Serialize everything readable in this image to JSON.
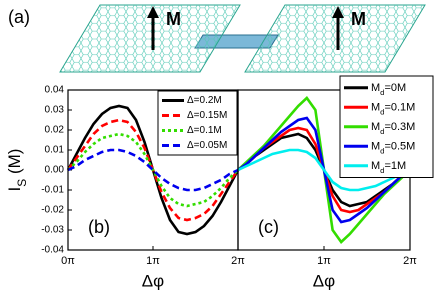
{
  "diagram": {
    "label": "(a)",
    "magnet_labels": [
      "M",
      "M"
    ]
  },
  "chart_data": [
    {
      "type": "line",
      "panel_label": "(b)",
      "xlabel": "Δφ",
      "ylabel": "IS (M)",
      "x": [
        0,
        0.1,
        0.2,
        0.3,
        0.4,
        0.5,
        0.6,
        0.7,
        0.8,
        0.9,
        1.0,
        1.1,
        1.2,
        1.3,
        1.4,
        1.5,
        1.6,
        1.7,
        1.8,
        1.9,
        2.0
      ],
      "xlim": [
        0,
        2
      ],
      "xticks": [
        {
          "value": 0,
          "label": "0π"
        },
        {
          "value": 1,
          "label": "1π"
        },
        {
          "value": 2,
          "label": "2π"
        }
      ],
      "ylim": [
        -0.04,
        0.04
      ],
      "yticks": [
        0.04,
        0.03,
        0.02,
        0.01,
        {
          "value": 0,
          "label": "0.00"
        },
        -0.01,
        -0.02,
        -0.03,
        -0.04
      ],
      "legend": "upper right",
      "series": [
        {
          "name": "Δ=0.2M",
          "color": "#000000",
          "dash": "solid",
          "values": [
            0,
            0.008,
            0.016,
            0.023,
            0.028,
            0.031,
            0.032,
            0.031,
            0.025,
            0.014,
            0,
            -0.014,
            -0.025,
            -0.031,
            -0.032,
            -0.031,
            -0.028,
            -0.023,
            -0.016,
            -0.008,
            0
          ]
        },
        {
          "name": "Δ=0.15M",
          "color": "#ff0000",
          "dash": "dashed",
          "values": [
            0,
            0.006,
            0.012,
            0.018,
            0.022,
            0.024,
            0.025,
            0.024,
            0.019,
            0.011,
            0,
            -0.011,
            -0.019,
            -0.024,
            -0.025,
            -0.024,
            -0.022,
            -0.018,
            -0.012,
            -0.006,
            0
          ]
        },
        {
          "name": "Δ=0.1M",
          "color": "#33dd00",
          "dash": "dotted",
          "values": [
            0,
            0.004,
            0.009,
            0.013,
            0.016,
            0.017,
            0.018,
            0.017,
            0.014,
            0.008,
            0,
            -0.008,
            -0.014,
            -0.017,
            -0.018,
            -0.017,
            -0.016,
            -0.013,
            -0.009,
            -0.004,
            0
          ]
        },
        {
          "name": "Δ=0.05M",
          "color": "#0000ee",
          "dash": "dashed",
          "values": [
            0,
            0.002,
            0.005,
            0.007,
            0.009,
            0.01,
            0.01,
            0.009,
            0.007,
            0.004,
            0,
            -0.004,
            -0.007,
            -0.009,
            -0.01,
            -0.01,
            -0.009,
            -0.007,
            -0.005,
            -0.002,
            0
          ]
        }
      ]
    },
    {
      "type": "line",
      "panel_label": "(c)",
      "xlabel": "Δφ",
      "x": [
        0,
        0.1,
        0.2,
        0.3,
        0.4,
        0.5,
        0.6,
        0.7,
        0.8,
        0.9,
        1.0,
        1.1,
        1.2,
        1.3,
        1.4,
        1.5,
        1.6,
        1.7,
        1.8,
        1.9,
        2.0
      ],
      "xlim": [
        0,
        2
      ],
      "xticks": [
        {
          "value": 1,
          "label": "1π"
        },
        {
          "value": 2,
          "label": "2π"
        }
      ],
      "ylim": [
        -0.04,
        0.04
      ],
      "legend": "upper right",
      "series": [
        {
          "name": "Md=0M",
          "color": "#000000",
          "dash": "solid",
          "values": [
            0,
            0.003,
            0.007,
            0.01,
            0.013,
            0.016,
            0.017,
            0.018,
            0.016,
            0.01,
            0,
            -0.01,
            -0.016,
            -0.018,
            -0.017,
            -0.016,
            -0.013,
            -0.01,
            -0.007,
            -0.003,
            0
          ]
        },
        {
          "name": "Md=0.1M",
          "color": "#ff0000",
          "dash": "solid",
          "values": [
            0,
            0.003,
            0.007,
            0.011,
            0.014,
            0.017,
            0.02,
            0.021,
            0.02,
            0.013,
            0,
            -0.013,
            -0.02,
            -0.021,
            -0.02,
            -0.017,
            -0.014,
            -0.011,
            -0.007,
            -0.003,
            0
          ]
        },
        {
          "name": "Md=0.3M",
          "color": "#33dd00",
          "dash": "solid",
          "values": [
            0,
            0.004,
            0.008,
            0.012,
            0.017,
            0.022,
            0.027,
            0.032,
            0.036,
            0.03,
            0,
            -0.03,
            -0.036,
            -0.032,
            -0.027,
            -0.022,
            -0.017,
            -0.012,
            -0.008,
            -0.004,
            0
          ]
        },
        {
          "name": "Md=0.5M",
          "color": "#0000ee",
          "dash": "solid",
          "values": [
            0,
            0.003,
            0.007,
            0.011,
            0.015,
            0.019,
            0.022,
            0.025,
            0.026,
            0.02,
            0,
            -0.02,
            -0.026,
            -0.025,
            -0.022,
            -0.019,
            -0.015,
            -0.011,
            -0.007,
            -0.003,
            0
          ]
        },
        {
          "name": "Md=1M",
          "color": "#00eeee",
          "dash": "solid",
          "values": [
            0,
            0.002,
            0.004,
            0.006,
            0.008,
            0.009,
            0.01,
            0.01,
            0.009,
            0.006,
            0,
            -0.006,
            -0.009,
            -0.01,
            -0.01,
            -0.009,
            -0.008,
            -0.006,
            -0.004,
            -0.002,
            0
          ]
        }
      ]
    }
  ]
}
